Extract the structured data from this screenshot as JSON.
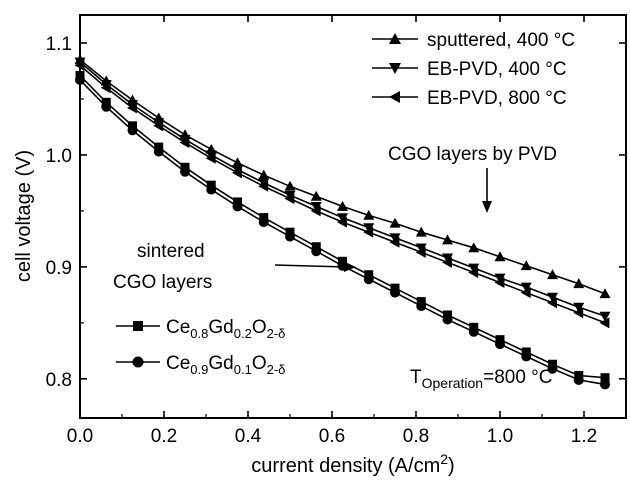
{
  "chart_data": {
    "type": "line",
    "xlabel": "current density (A/cm",
    "xlabel_sup": "2",
    "xlabel_end": ")",
    "ylabel": "cell voltage (V)",
    "xlim": [
      0.0,
      1.3
    ],
    "ylim": [
      0.765,
      1.125
    ],
    "xticks": [
      "0.0",
      "0.2",
      "0.4",
      "0.6",
      "0.8",
      "1.0",
      "1.2"
    ],
    "xtick_values": [
      0.0,
      0.2,
      0.4,
      0.6,
      0.8,
      1.0,
      1.2
    ],
    "yticks": [
      "0.8",
      "0.9",
      "1.0",
      "1.1"
    ],
    "ytick_values": [
      0.8,
      0.9,
      1.0,
      1.1
    ],
    "x": [
      0.0,
      0.0625,
      0.125,
      0.1875,
      0.25,
      0.3125,
      0.375,
      0.4375,
      0.5,
      0.5625,
      0.625,
      0.6875,
      0.75,
      0.8125,
      0.875,
      0.9375,
      1.0,
      1.0625,
      1.125,
      1.1875,
      1.25
    ],
    "legend_position": "top-right",
    "series": [
      {
        "name": "sputtered, 400 °C",
        "marker": "triangle-up",
        "values": [
          1.085,
          1.066,
          1.049,
          1.033,
          1.018,
          1.005,
          0.993,
          0.982,
          0.972,
          0.963,
          0.954,
          0.946,
          0.939,
          0.931,
          0.924,
          0.917,
          0.909,
          0.901,
          0.893,
          0.885,
          0.876
        ]
      },
      {
        "name": "EB-PVD, 400 °C",
        "marker": "triangle-down",
        "values": [
          1.083,
          1.063,
          1.045,
          1.029,
          1.014,
          1.0,
          0.987,
          0.975,
          0.964,
          0.954,
          0.944,
          0.935,
          0.926,
          0.917,
          0.908,
          0.899,
          0.89,
          0.882,
          0.873,
          0.864,
          0.856
        ]
      },
      {
        "name": "EB-PVD, 800 °C",
        "marker": "triangle-left",
        "values": [
          1.08,
          1.06,
          1.042,
          1.026,
          1.011,
          0.997,
          0.984,
          0.972,
          0.961,
          0.95,
          0.94,
          0.931,
          0.922,
          0.913,
          0.904,
          0.895,
          0.886,
          0.877,
          0.868,
          0.859,
          0.85
        ]
      },
      {
        "name_parts": [
          "Ce",
          "0.8",
          "Gd",
          "0.2",
          "O",
          "2-δ"
        ],
        "marker": "square",
        "values": [
          1.071,
          1.047,
          1.026,
          1.007,
          0.989,
          0.973,
          0.958,
          0.944,
          0.931,
          0.918,
          0.905,
          0.893,
          0.881,
          0.869,
          0.857,
          0.846,
          0.835,
          0.824,
          0.813,
          0.803,
          0.801
        ]
      },
      {
        "name_parts": [
          "Ce",
          "0.9",
          "Gd",
          "0.1",
          "O",
          "2-δ"
        ],
        "marker": "circle",
        "values": [
          1.067,
          1.043,
          1.022,
          1.003,
          0.985,
          0.969,
          0.954,
          0.94,
          0.927,
          0.914,
          0.901,
          0.889,
          0.877,
          0.865,
          0.853,
          0.842,
          0.831,
          0.82,
          0.809,
          0.799,
          0.795
        ]
      }
    ],
    "annotations": {
      "pvd_label": "CGO layers by PVD",
      "sintered_line1": "sintered",
      "sintered_line2": "CGO layers",
      "operation_T": "T",
      "operation_sub": "Operation",
      "operation_value": "=800 °C"
    }
  }
}
